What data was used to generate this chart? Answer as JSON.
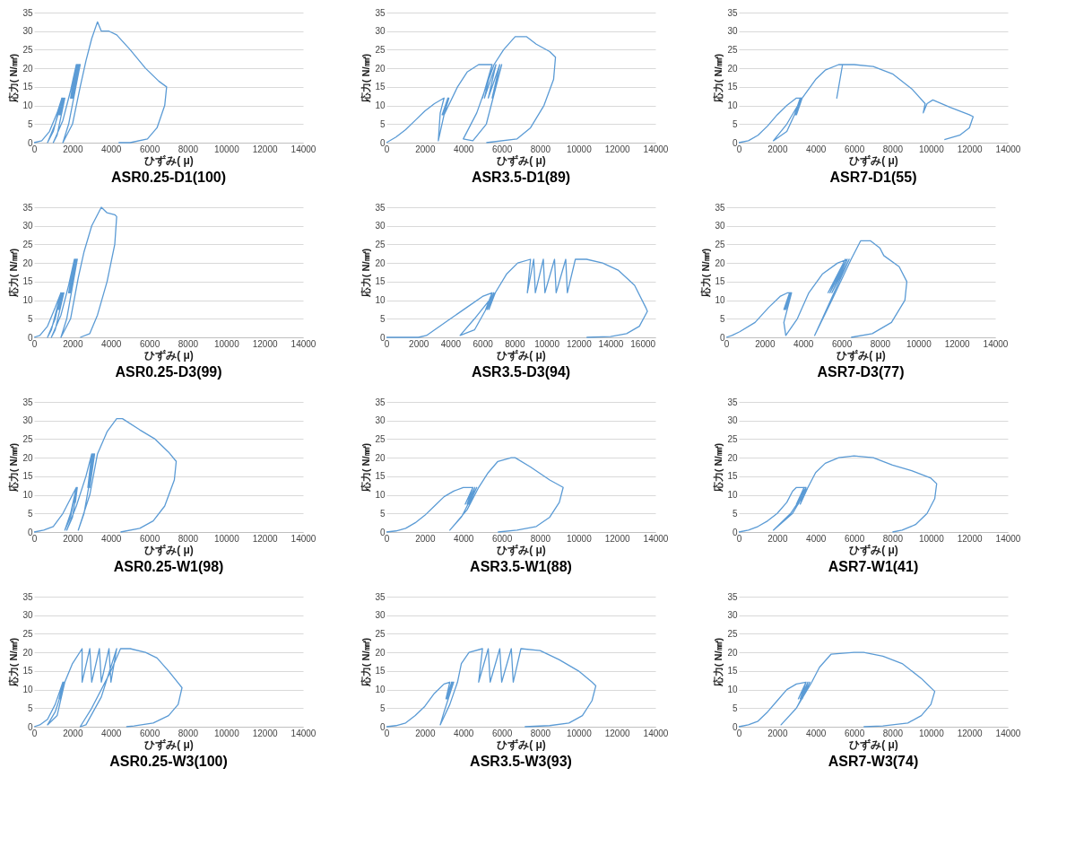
{
  "chart_data": [
    {
      "type": "line",
      "title": "ASR0.25-D1(100)",
      "xlabel": "ひずみ( μ)",
      "ylabel": "応力( N/㎟)",
      "xlim": [
        0,
        14000
      ],
      "xticks": [
        0,
        2000,
        4000,
        6000,
        8000,
        10000,
        12000,
        14000
      ],
      "ylim": [
        0,
        35
      ],
      "yticks": [
        0,
        5,
        10,
        15,
        20,
        25,
        30,
        35
      ],
      "grid": "y",
      "series": [
        {
          "color": "#5b9bd5",
          "x": [
            0,
            400,
            800,
            1200,
            1450,
            1000,
            700,
            1100,
            1500,
            1300,
            1500,
            1350,
            1550,
            1400,
            1600,
            1200,
            1000,
            1500,
            1900,
            2200,
            1900,
            2250,
            1950,
            2300,
            2000,
            2350,
            2050,
            2400,
            1800,
            1500,
            2000,
            2400,
            2700,
            3000,
            3300,
            3500,
            3900,
            4300,
            5000,
            5800,
            6500,
            6900,
            6800,
            6400,
            5900,
            5000,
            4400
          ],
          "values": [
            0,
            0.5,
            3,
            8,
            12,
            3,
            0,
            5,
            12,
            7.5,
            12,
            7.5,
            12,
            7.5,
            12,
            2,
            0,
            6,
            14,
            21,
            12,
            21,
            12,
            21,
            12,
            21,
            12,
            21,
            5,
            0,
            5,
            15,
            22,
            28,
            32.5,
            30,
            30,
            29,
            25,
            20,
            16.5,
            15,
            10,
            4,
            1,
            0,
            0
          ]
        }
      ]
    },
    {
      "type": "line",
      "title": "ASR3.5-D1(89)",
      "xlabel": "ひずみ( μ)",
      "ylabel": "応力( N/㎟)",
      "xlim": [
        0,
        14000
      ],
      "xticks": [
        0,
        2000,
        4000,
        6000,
        8000,
        10000,
        12000,
        14000
      ],
      "ylim": [
        0,
        35
      ],
      "yticks": [
        0,
        5,
        10,
        15,
        20,
        25,
        30,
        35
      ],
      "grid": "y",
      "series": [
        {
          "color": "#5b9bd5",
          "x": [
            0,
            500,
            1000,
            1500,
            2000,
            2500,
            3000,
            2800,
            2700,
            3000,
            3200,
            2900,
            3200,
            2950,
            3250,
            3000,
            3700,
            4200,
            4800,
            5500,
            5000,
            5500,
            5100,
            5700,
            5300,
            5900,
            5500,
            6000,
            5200,
            4500,
            4000,
            4700,
            5600,
            6100,
            6700,
            7300,
            7800,
            8500,
            8800,
            8700,
            8200,
            7500,
            6800,
            5200
          ],
          "values": [
            0,
            1.5,
            3.5,
            6,
            8.5,
            10.5,
            12,
            8,
            0.5,
            7.5,
            12,
            7.5,
            12,
            7.5,
            12,
            7.5,
            15,
            19,
            21,
            21,
            12,
            21,
            12,
            21,
            12,
            21,
            12,
            21,
            5,
            0.5,
            1,
            8,
            21,
            25,
            28.5,
            28.5,
            26.5,
            24.5,
            23,
            17,
            10,
            4,
            1,
            0
          ]
        }
      ]
    },
    {
      "type": "line",
      "title": "ASR7-D1(55)",
      "xlabel": "ひずみ( μ)",
      "ylabel": "応力( N/㎟)",
      "xlim": [
        0,
        14000
      ],
      "xticks": [
        0,
        2000,
        4000,
        6000,
        8000,
        10000,
        12000,
        14000
      ],
      "ylim": [
        0,
        35
      ],
      "yticks": [
        0,
        5,
        10,
        15,
        20,
        25,
        30,
        35
      ],
      "grid": "y",
      "series": [
        {
          "color": "#5b9bd5",
          "x": [
            0,
            500,
            1000,
            1500,
            2000,
            2500,
            3000,
            3300,
            2900,
            3200,
            2950,
            3250,
            3000,
            3300,
            2500,
            1800,
            2500,
            3300,
            4000,
            4500,
            5200,
            5400,
            5100,
            5400,
            5500,
            6000,
            7000,
            8000,
            9000,
            9700,
            9600,
            9800,
            10100,
            11000,
            12000,
            12200,
            12000,
            11500,
            10700
          ],
          "values": [
            0,
            0.5,
            2,
            4.5,
            7.5,
            10,
            12,
            12,
            7.5,
            12,
            7.5,
            12,
            7.5,
            12,
            3,
            0.5,
            5,
            12,
            17,
            19.5,
            21,
            21,
            12,
            21,
            21,
            21,
            20.5,
            18.5,
            14.5,
            10.5,
            8,
            10.5,
            11.5,
            9.5,
            7.5,
            7,
            4,
            2,
            0.8
          ]
        }
      ]
    },
    {
      "type": "line",
      "title": "ASR0.25-D3(99)",
      "xlabel": "ひずみ( μ)",
      "ylabel": "応力( N/㎟)",
      "xlim": [
        0,
        14000
      ],
      "xticks": [
        0,
        2000,
        4000,
        6000,
        8000,
        10000,
        12000,
        14000
      ],
      "ylim": [
        0,
        35
      ],
      "yticks": [
        0,
        5,
        10,
        15,
        20,
        25,
        30,
        35
      ],
      "grid": "y",
      "series": [
        {
          "color": "#5b9bd5",
          "x": [
            0,
            300,
            700,
            1100,
            1400,
            900,
            700,
            1100,
            1400,
            1250,
            1450,
            1300,
            1500,
            1350,
            1550,
            1100,
            900,
            1400,
            1800,
            2100,
            1800,
            2150,
            1850,
            2200,
            1900,
            2250,
            1700,
            1400,
            1900,
            2300,
            2600,
            3000,
            3500,
            3800,
            4200,
            4300,
            4200,
            3800,
            3300,
            2900,
            2400
          ],
          "values": [
            0,
            0.5,
            3,
            8,
            12,
            2,
            0,
            5,
            12,
            7.5,
            12,
            7.5,
            12,
            7.5,
            12,
            2,
            0,
            6,
            14,
            21,
            12,
            21,
            12,
            21,
            12,
            21,
            5,
            0,
            5,
            16,
            23,
            30,
            35,
            33.5,
            33,
            32.5,
            25,
            15,
            6,
            1,
            0
          ]
        }
      ]
    },
    {
      "type": "line",
      "title": "ASR3.5-D3(94)",
      "xlabel": "ひずみ( μ)",
      "ylabel": "応力( N/㎟)",
      "xlim": [
        0,
        16800
      ],
      "xticks": [
        0,
        2000,
        4000,
        6000,
        8000,
        10000,
        12000,
        14000,
        16000
      ],
      "ylim": [
        0,
        35
      ],
      "yticks": [
        0,
        5,
        10,
        15,
        20,
        25,
        30,
        35
      ],
      "grid": "y",
      "series": [
        {
          "color": "#5b9bd5",
          "x": [
            0,
            1000,
            2000,
            2500,
            3000,
            4000,
            5000,
            6000,
            6600,
            6200,
            6600,
            6300,
            6700,
            6400,
            6800,
            5500,
            4600,
            5500,
            6800,
            7500,
            8200,
            9000,
            8800,
            9200,
            9300,
            9800,
            9900,
            10500,
            10600,
            11200,
            11300,
            11800,
            12500,
            13500,
            14500,
            15500,
            16200,
            16300,
            15800,
            15000,
            14000,
            12500
          ],
          "values": [
            0,
            0,
            0,
            0.5,
            2,
            5,
            8,
            11,
            12,
            7.5,
            12,
            7.5,
            12,
            7.5,
            12,
            2,
            0.5,
            5,
            12,
            17,
            20,
            21,
            12,
            21,
            12,
            21,
            12,
            21,
            12,
            21,
            12,
            21,
            21,
            20,
            18,
            14,
            8,
            7,
            3,
            1,
            0.2,
            0
          ]
        }
      ]
    },
    {
      "type": "line",
      "title": "ASR7-D3(77)",
      "xlabel": "ひずみ( μ)",
      "ylabel": "応力( N/㎟)",
      "xlim": [
        0,
        14000
      ],
      "xticks": [
        0,
        2000,
        4000,
        6000,
        8000,
        10000,
        12000,
        14000
      ],
      "ylim": [
        0,
        35
      ],
      "yticks": [
        0,
        5,
        10,
        15,
        20,
        25,
        30,
        35
      ],
      "grid": "y",
      "series": [
        {
          "color": "#5b9bd5",
          "x": [
            0,
            300,
            700,
            1500,
            2200,
            2800,
            3200,
            3400,
            3000,
            3300,
            3050,
            3350,
            3100,
            3400,
            3000,
            3100,
            3700,
            4300,
            5000,
            5800,
            6300,
            5300,
            6200,
            5400,
            6300,
            5500,
            6400,
            5000,
            4600,
            5500,
            6500,
            7000,
            7500,
            8000,
            8200,
            9000,
            9400,
            9300,
            8600,
            7600,
            6500
          ],
          "values": [
            0,
            0.5,
            1.5,
            4,
            8,
            11,
            12,
            12,
            7.5,
            12,
            7.5,
            12,
            7.5,
            12,
            4,
            0.5,
            5,
            12,
            17,
            20,
            21,
            12,
            21,
            12,
            21,
            12,
            21,
            5,
            0.5,
            10,
            21,
            26,
            26,
            24,
            22,
            19,
            15,
            10,
            4,
            1,
            0
          ]
        }
      ]
    },
    {
      "type": "line",
      "title": "ASR0.25-W1(98)",
      "xlabel": "ひずみ( μ)",
      "ylabel": "応力( N/㎟)",
      "xlim": [
        0,
        14000
      ],
      "xticks": [
        0,
        2000,
        4000,
        6000,
        8000,
        10000,
        12000,
        14000
      ],
      "ylim": [
        0,
        35
      ],
      "yticks": [
        0,
        5,
        10,
        15,
        20,
        25,
        30,
        35
      ],
      "grid": "y",
      "series": [
        {
          "color": "#5b9bd5",
          "x": [
            0,
            500,
            1000,
            1500,
            2000,
            2200,
            1900,
            1600,
            1900,
            2200,
            2100,
            2200,
            2150,
            2250,
            2000,
            1700,
            2200,
            2700,
            3000,
            2800,
            3050,
            2850,
            3100,
            2900,
            3150,
            2600,
            2300,
            2900,
            3300,
            3800,
            4300,
            4600,
            5500,
            6300,
            7000,
            7400,
            7300,
            6800,
            6200,
            5500,
            4500
          ],
          "values": [
            0,
            0.5,
            1.5,
            5,
            10,
            12,
            4,
            0.5,
            5,
            12,
            8,
            12,
            8,
            12,
            4,
            0.5,
            7,
            15,
            21,
            12,
            21,
            12,
            21,
            12,
            21,
            5,
            0.5,
            10,
            21,
            27,
            30.5,
            30.5,
            27.5,
            25,
            21.5,
            19,
            14,
            7,
            3,
            1,
            0
          ]
        }
      ]
    },
    {
      "type": "line",
      "title": "ASR3.5-W1(88)",
      "xlabel": "ひずみ( μ)",
      "ylabel": "応力( N/㎟)",
      "xlim": [
        0,
        14000
      ],
      "xticks": [
        0,
        2000,
        4000,
        6000,
        8000,
        10000,
        12000,
        14000
      ],
      "ylim": [
        0,
        35
      ],
      "yticks": [
        0,
        5,
        10,
        15,
        20,
        25,
        30,
        35
      ],
      "grid": "y",
      "series": [
        {
          "color": "#5b9bd5",
          "x": [
            0,
            500,
            1000,
            1500,
            2000,
            2500,
            3000,
            3500,
            4000,
            4500,
            4100,
            4500,
            4200,
            4600,
            4300,
            4700,
            3900,
            3300,
            4200,
            4800,
            5300,
            5800,
            6500,
            6700,
            7500,
            8500,
            9200,
            9000,
            8500,
            7800,
            6800,
            5800
          ],
          "values": [
            0,
            0.3,
            1,
            2.5,
            4.5,
            7,
            9.5,
            11,
            12,
            12,
            7.5,
            12,
            7.5,
            12,
            7.5,
            12,
            4,
            0.5,
            6,
            12,
            16,
            19,
            20,
            20,
            17.5,
            14,
            12,
            8,
            4,
            1.5,
            0.5,
            0
          ]
        }
      ]
    },
    {
      "type": "line",
      "title": "ASR7-W1(41)",
      "xlabel": "ひずみ( μ)",
      "ylabel": "応力( N/㎟)",
      "xlim": [
        0,
        14000
      ],
      "xticks": [
        0,
        2000,
        4000,
        6000,
        8000,
        10000,
        12000,
        14000
      ],
      "ylim": [
        0,
        35
      ],
      "yticks": [
        0,
        5,
        10,
        15,
        20,
        25,
        30,
        35
      ],
      "grid": "y",
      "series": [
        {
          "color": "#5b9bd5",
          "x": [
            0,
            500,
            1000,
            1500,
            2000,
            2500,
            2800,
            3000,
            3500,
            3000,
            3400,
            3100,
            3500,
            3200,
            3600,
            2800,
            1800,
            2700,
            3600,
            4000,
            4500,
            5200,
            6000,
            7000,
            8000,
            9000,
            10000,
            10300,
            10200,
            9800,
            9200,
            8500,
            8000
          ],
          "values": [
            0,
            0.5,
            1.5,
            3,
            5,
            8,
            11,
            12,
            12,
            7.5,
            12,
            7.5,
            12,
            7.5,
            12,
            5,
            0.5,
            5,
            12,
            16,
            18.5,
            20,
            20.5,
            20,
            18,
            16.5,
            14.5,
            13,
            9,
            5,
            2,
            0.5,
            0
          ]
        }
      ]
    },
    {
      "type": "line",
      "title": "ASR0.25-W3(100)",
      "xlabel": "ひずみ( μ)",
      "ylabel": "応力( N/㎟)",
      "xlim": [
        0,
        14000
      ],
      "xticks": [
        0,
        2000,
        4000,
        6000,
        8000,
        10000,
        12000,
        14000
      ],
      "ylim": [
        0,
        35
      ],
      "yticks": [
        0,
        5,
        10,
        15,
        20,
        25,
        30,
        35
      ],
      "grid": "y",
      "series": [
        {
          "color": "#5b9bd5",
          "x": [
            0,
            300,
            700,
            1100,
            1500,
            1300,
            1550,
            1350,
            1600,
            1200,
            700,
            1100,
            1600,
            2000,
            2500,
            2500,
            2900,
            3000,
            3400,
            3500,
            3900,
            4000,
            4300,
            3500,
            2700,
            2400,
            3000,
            4000,
            4500,
            5000,
            5800,
            6400,
            7000,
            7700,
            7500,
            7000,
            6200,
            5200,
            4800
          ],
          "values": [
            0,
            0.5,
            2,
            6,
            12,
            7.5,
            12,
            7.5,
            12,
            3,
            0.5,
            4,
            12,
            17,
            21,
            12,
            21,
            12,
            21,
            12,
            21,
            12,
            21,
            8,
            0.5,
            0,
            5,
            15,
            21,
            21,
            20,
            18.5,
            15,
            10.5,
            6,
            3,
            1,
            0.2,
            0
          ]
        }
      ]
    },
    {
      "type": "line",
      "title": "ASR3.5-W3(93)",
      "xlabel": "ひずみ( μ)",
      "ylabel": "応力( N/㎟)",
      "xlim": [
        0,
        14000
      ],
      "xticks": [
        0,
        2000,
        4000,
        6000,
        8000,
        10000,
        12000,
        14000
      ],
      "ylim": [
        0,
        35
      ],
      "yticks": [
        0,
        5,
        10,
        15,
        20,
        25,
        30,
        35
      ],
      "grid": "y",
      "series": [
        {
          "color": "#5b9bd5",
          "x": [
            0,
            500,
            1000,
            1500,
            2000,
            2500,
            3000,
            3300,
            3100,
            3400,
            3150,
            3450,
            3200,
            3500,
            3000,
            2800,
            3300,
            3700,
            3900,
            4300,
            5000,
            4800,
            5300,
            5400,
            5900,
            6000,
            6500,
            6600,
            7000,
            8000,
            9000,
            10000,
            10700,
            10900,
            10700,
            10200,
            9500,
            8500,
            7200
          ],
          "values": [
            0,
            0.3,
            1,
            3,
            5.5,
            9,
            11.5,
            12,
            7.5,
            12,
            7.5,
            12,
            7.5,
            12,
            4,
            0.5,
            6,
            12,
            17,
            20,
            21,
            12,
            21,
            12,
            21,
            12,
            21,
            12,
            21,
            20.5,
            18,
            15,
            12,
            11,
            7,
            3,
            1,
            0.3,
            0
          ]
        }
      ]
    },
    {
      "type": "line",
      "title": "ASR7-W3(74)",
      "xlabel": "ひずみ( μ)",
      "ylabel": "応力( N/㎟)",
      "xlim": [
        0,
        14000
      ],
      "xticks": [
        0,
        2000,
        4000,
        6000,
        8000,
        10000,
        12000,
        14000
      ],
      "ylim": [
        0,
        35
      ],
      "yticks": [
        0,
        5,
        10,
        15,
        20,
        25,
        30,
        35
      ],
      "grid": "y",
      "series": [
        {
          "color": "#5b9bd5",
          "x": [
            0,
            500,
            1000,
            1500,
            2000,
            2500,
            3000,
            3500,
            3100,
            3500,
            3200,
            3600,
            3300,
            3700,
            3000,
            2200,
            3000,
            3800,
            4200,
            4800,
            6000,
            6500,
            7500,
            8500,
            9500,
            10200,
            10000,
            9500,
            8800,
            7500,
            6500
          ],
          "values": [
            0,
            0.5,
            1.5,
            4,
            7,
            10,
            11.5,
            12,
            7.5,
            12,
            7.5,
            12,
            7.5,
            12,
            5,
            0.5,
            5,
            12,
            16,
            19.5,
            20,
            20,
            19,
            17,
            13,
            9.5,
            6,
            3,
            1,
            0.2,
            0
          ]
        }
      ]
    }
  ]
}
